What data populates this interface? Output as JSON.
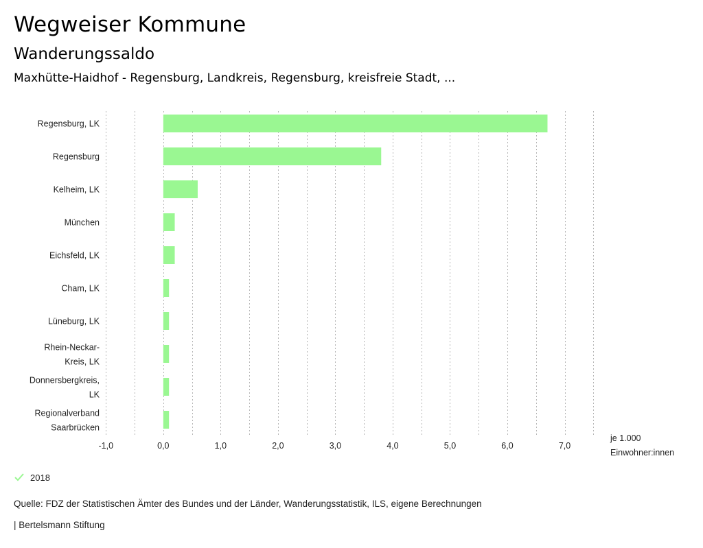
{
  "header": {
    "title": "Wegweiser Kommune",
    "subtitle": "Wanderungssaldo",
    "region": "Maxhütte-Haidhof - Regensburg, Landkreis, Regensburg, kreisfreie Stadt, ..."
  },
  "chart_data": {
    "type": "bar",
    "orientation": "horizontal",
    "title": "Wanderungssaldo",
    "categories": [
      [
        "Regensburg, LK"
      ],
      [
        "Regensburg"
      ],
      [
        "Kelheim, LK"
      ],
      [
        "München"
      ],
      [
        "Eichsfeld, LK"
      ],
      [
        "Cham, LK"
      ],
      [
        "Lüneburg, LK"
      ],
      [
        "Rhein-Neckar-",
        "Kreis, LK"
      ],
      [
        "Donnersbergkreis,",
        "LK"
      ],
      [
        "Regionalverband",
        "Saarbrücken"
      ]
    ],
    "series": [
      {
        "name": "2018",
        "values": [
          6.7,
          3.8,
          0.6,
          0.2,
          0.2,
          0.1,
          0.1,
          0.1,
          0.1,
          0.1
        ]
      }
    ],
    "xlim": [
      -1.0,
      7.5
    ],
    "xticks": [
      -1.0,
      0.0,
      1.0,
      2.0,
      3.0,
      4.0,
      5.0,
      6.0,
      7.0
    ],
    "xtick_labels": [
      "-1,0",
      "0,0",
      "1,0",
      "2,0",
      "3,0",
      "4,0",
      "5,0",
      "6,0",
      "7,0"
    ],
    "grid_step": 0.5,
    "grid": true,
    "xlabel": [
      "je 1.000",
      "Einwohner:innen"
    ],
    "legend_position": "bottom-left",
    "colors": {
      "bar": "#9af792",
      "grid": "#b5b5b5"
    }
  },
  "legend": {
    "label": "2018",
    "icon": "check-icon"
  },
  "footer": {
    "source": "Quelle: FDZ der Statistischen Ämter des Bundes und der Länder, Wanderungsstatistik, ILS, eigene Berechnungen",
    "brand": "| Bertelsmann Stiftung"
  }
}
